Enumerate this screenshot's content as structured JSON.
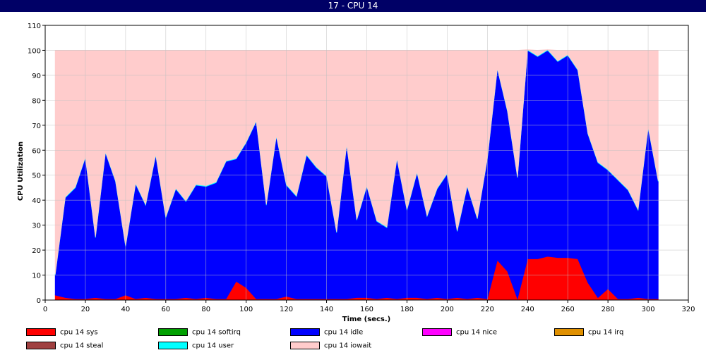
{
  "window": {
    "title": "17 - CPU 14"
  },
  "chart_data": {
    "type": "area",
    "stacked": true,
    "xlabel": "Time (secs.)",
    "ylabel": "CPU Utilization",
    "xlim": [
      0,
      320
    ],
    "ylim": [
      0,
      110
    ],
    "xticks": [
      0,
      20,
      40,
      60,
      80,
      100,
      120,
      140,
      160,
      180,
      200,
      220,
      240,
      260,
      280,
      300,
      320
    ],
    "yticks": [
      0,
      10,
      20,
      30,
      40,
      50,
      60,
      70,
      80,
      90,
      100,
      110
    ],
    "grid": true,
    "legend_position": "bottom",
    "x": [
      5,
      10,
      15,
      20,
      25,
      30,
      35,
      40,
      45,
      50,
      55,
      60,
      65,
      70,
      75,
      80,
      85,
      90,
      95,
      100,
      105,
      110,
      115,
      120,
      125,
      130,
      135,
      140,
      145,
      150,
      155,
      160,
      165,
      170,
      175,
      180,
      185,
      190,
      195,
      200,
      205,
      210,
      215,
      220,
      225,
      230,
      235,
      240,
      245,
      250,
      255,
      260,
      265,
      270,
      275,
      280,
      285,
      290,
      295,
      300,
      305
    ],
    "series": [
      {
        "name": "cpu 14 sys",
        "color": "#ff0000",
        "values": [
          2,
          1,
          0.5,
          0.5,
          1,
          0.5,
          0.5,
          2,
          0.5,
          1,
          0.5,
          0.5,
          0.5,
          1,
          0.5,
          1,
          0.5,
          0.5,
          7.5,
          5,
          0.5,
          0.5,
          0.5,
          1.5,
          0.5,
          0.5,
          0.5,
          0.5,
          0.5,
          0.5,
          1,
          1,
          0.5,
          1,
          0.5,
          1,
          1,
          0.5,
          1,
          0.5,
          1,
          0.5,
          1,
          0.5,
          16,
          11.5,
          0.5,
          16.5,
          16.5,
          17.5,
          17,
          17,
          16.5,
          7,
          1,
          4.5,
          0.5,
          0.5,
          1,
          0.5,
          0.5
        ]
      },
      {
        "name": "cpu 14 softirq",
        "color": "#00a000",
        "values": [
          0,
          0,
          0,
          0,
          0,
          0,
          0,
          0,
          0,
          0,
          0,
          0,
          0,
          0,
          0,
          0,
          0,
          0,
          0,
          0,
          0,
          0,
          0,
          0,
          0,
          0,
          0,
          0,
          0,
          0,
          0,
          0,
          0,
          0,
          0,
          0,
          0,
          0,
          0,
          0,
          0,
          0,
          0,
          0,
          0,
          0,
          0,
          0,
          0,
          0,
          0,
          0,
          0,
          0,
          0,
          0,
          0,
          0,
          0,
          0,
          0
        ]
      },
      {
        "name": "cpu 14 idle",
        "color": "#0000ff",
        "values": [
          8,
          40,
          44.5,
          56.5,
          24,
          58.5,
          47,
          19.5,
          46,
          37,
          57.5,
          32.5,
          44,
          38.5,
          45.5,
          44.5,
          46.5,
          55,
          49,
          58,
          71,
          37.5,
          65,
          44.5,
          41,
          57.5,
          52.5,
          49,
          26.5,
          61.5,
          31,
          44.5,
          31,
          28,
          56,
          35,
          50,
          33,
          43.5,
          50,
          26.5,
          45,
          31.5,
          56,
          76.5,
          64,
          48.5,
          83.5,
          81,
          82.5,
          78.5,
          81,
          75.5,
          59.5,
          54,
          47.5,
          47.5,
          43.5,
          35,
          68.5,
          47
        ]
      },
      {
        "name": "cpu 14 nice",
        "color": "#ff00ff",
        "values": [
          0,
          0,
          0,
          0,
          0,
          0,
          0,
          0,
          0,
          0,
          0,
          0,
          0,
          0,
          0,
          0,
          0,
          0,
          0,
          0,
          0,
          0,
          0,
          0,
          0,
          0,
          0,
          0,
          0,
          0,
          0,
          0,
          0,
          0,
          0,
          0,
          0,
          0,
          0,
          0,
          0,
          0,
          0,
          0,
          0,
          0,
          0,
          0,
          0,
          0,
          0,
          0,
          0,
          0,
          0,
          0,
          0,
          0,
          0,
          0,
          0
        ]
      },
      {
        "name": "cpu 14 irq",
        "color": "#e09000",
        "values": [
          0,
          0,
          0,
          0,
          0,
          0,
          0,
          0,
          0,
          0,
          0,
          0,
          0,
          0,
          0,
          0,
          0,
          0,
          0,
          0,
          0,
          0,
          0,
          0,
          0,
          0,
          0,
          0,
          0,
          0,
          0,
          0,
          0,
          0,
          0,
          0,
          0,
          0,
          0,
          0,
          0,
          0,
          0,
          0,
          0,
          0,
          0,
          0,
          0,
          0,
          0,
          0,
          0,
          0,
          0,
          0,
          0,
          0,
          0,
          0,
          0
        ]
      },
      {
        "name": "cpu 14 steal",
        "color": "#a04040",
        "values": [
          0,
          0,
          0,
          0,
          0,
          0,
          0,
          0,
          0,
          0,
          0,
          0,
          0,
          0,
          0,
          0,
          0,
          0,
          0,
          0,
          0,
          0,
          0,
          0,
          0,
          0,
          0,
          0,
          0,
          0,
          0,
          0,
          0,
          0,
          0,
          0,
          0,
          0,
          0,
          0,
          0,
          0,
          0,
          0,
          0,
          0,
          0,
          0,
          0,
          0,
          0,
          0,
          0,
          0,
          0,
          0,
          0,
          0,
          0,
          0,
          0
        ]
      },
      {
        "name": "cpu 14 user",
        "color": "#00ffff",
        "values": [
          0.3,
          0.3,
          0.3,
          0.3,
          0.3,
          0.3,
          0.3,
          0.3,
          0.3,
          0.3,
          0.3,
          0.3,
          0.3,
          0.3,
          0.3,
          0.3,
          0.3,
          0.3,
          0.3,
          0.3,
          0.3,
          0.3,
          0.3,
          0.3,
          0.3,
          0.3,
          0.3,
          0.3,
          0.3,
          0.3,
          0.3,
          0.3,
          0.3,
          0.3,
          0.3,
          0.3,
          0.3,
          0.3,
          0.3,
          0.3,
          0.3,
          0.3,
          0.3,
          0.3,
          0.3,
          0.3,
          0.3,
          0.3,
          0.3,
          0.3,
          0.3,
          0.3,
          0.3,
          0.3,
          0.3,
          0.3,
          0.3,
          0.3,
          0.3,
          0.3,
          0.3
        ]
      },
      {
        "name": "cpu 14 iowait",
        "color": "#ffcccc",
        "values": [
          89.7,
          58.7,
          54.7,
          42.7,
          74.7,
          40.7,
          52.2,
          78.2,
          53.2,
          61.7,
          41.7,
          66.7,
          55.2,
          60.2,
          53.7,
          54.2,
          52.7,
          44.2,
          43.2,
          36.7,
          28.2,
          61.7,
          34.2,
          53.7,
          58.2,
          41.7,
          46.7,
          50.2,
          72.7,
          37.7,
          67.7,
          54.2,
          68.2,
          70.7,
          43.2,
          63.7,
          48.7,
          66.2,
          55.2,
          49.2,
          72.2,
          54.2,
          67.2,
          43.2,
          7.2,
          24.2,
          50.7,
          0,
          2.2,
          0,
          4.2,
          1.7,
          7.7,
          33.2,
          44.7,
          47.7,
          51.7,
          55.7,
          63.7,
          30.7,
          52.2
        ]
      }
    ]
  }
}
